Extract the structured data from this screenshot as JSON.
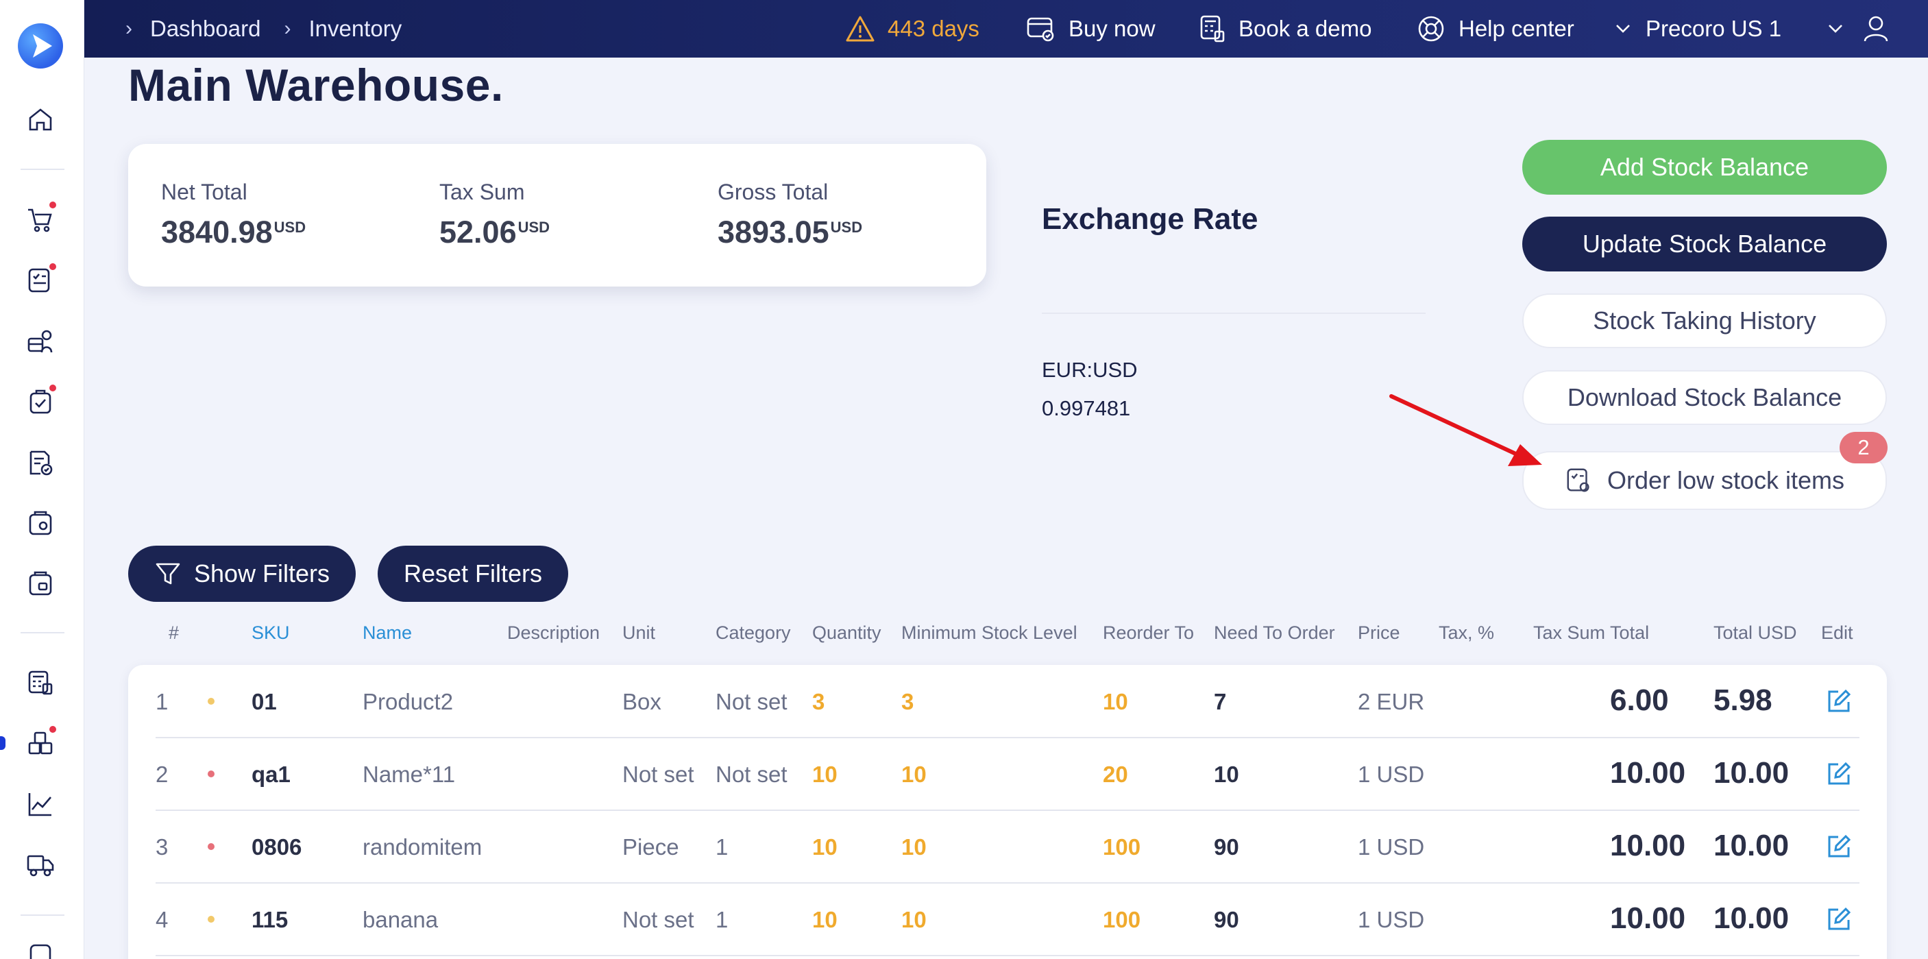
{
  "breadcrumb": [
    "Dashboard",
    "Inventory"
  ],
  "topbar": {
    "trial": "443 days",
    "buy_now": "Buy now",
    "book_demo": "Book a demo",
    "help_center": "Help center",
    "company": "Precoro US 1"
  },
  "page_title": "Main Warehouse.",
  "summary": {
    "net_total_label": "Net Total",
    "net_total_value": "3840.98",
    "tax_sum_label": "Tax Sum",
    "tax_sum_value": "52.06",
    "gross_total_label": "Gross Total",
    "gross_total_value": "3893.05",
    "currency": "USD"
  },
  "exchange": {
    "title": "Exchange Rate",
    "pair": "EUR:USD",
    "rate": "0.997481"
  },
  "actions": {
    "add_stock": "Add Stock Balance",
    "update_stock": "Update Stock Balance",
    "history": "Stock Taking History",
    "download": "Download Stock Balance",
    "order_low": "Order low stock items",
    "order_low_badge": "2"
  },
  "filters": {
    "show": "Show Filters",
    "reset": "Reset Filters"
  },
  "table": {
    "headers": [
      "#",
      "SKU",
      "Name",
      "Description",
      "Unit",
      "Category",
      "Quantity",
      "Minimum Stock Level",
      "Reorder To",
      "Need To Order",
      "Price",
      "Tax, %",
      "Tax Sum Total",
      "Total USD",
      "Edit"
    ],
    "rows": [
      {
        "num": "1",
        "status": "warning",
        "sku": "01",
        "name": "Product2",
        "description": "",
        "unit": "Box",
        "category": "Not set",
        "quantity": "3",
        "min_level": "3",
        "reorder_to": "10",
        "need": "7",
        "price": "2 EUR",
        "tax": "",
        "tax_sum_total": "6.00",
        "total": "5.98"
      },
      {
        "num": "2",
        "status": "danger",
        "sku": "qa1",
        "name": "Name*11",
        "description": "",
        "unit": "Not set",
        "category": "Not set",
        "quantity": "10",
        "min_level": "10",
        "reorder_to": "20",
        "need": "10",
        "price": "1 USD",
        "tax": "",
        "tax_sum_total": "10.00",
        "total": "10.00"
      },
      {
        "num": "3",
        "status": "danger",
        "sku": "0806",
        "name": "randomitem",
        "description": "",
        "unit": "Piece",
        "category": "1",
        "quantity": "10",
        "min_level": "10",
        "reorder_to": "100",
        "need": "90",
        "price": "1 USD",
        "tax": "",
        "tax_sum_total": "10.00",
        "total": "10.00"
      },
      {
        "num": "4",
        "status": "warning",
        "sku": "115",
        "name": "banana",
        "description": "",
        "unit": "Not set",
        "category": "1",
        "quantity": "10",
        "min_level": "10",
        "reorder_to": "100",
        "need": "90",
        "price": "1 USD",
        "tax": "",
        "tax_sum_total": "10.00",
        "total": "10.00"
      }
    ]
  },
  "colors": {
    "navy": "#1b2452",
    "green": "#67c46b",
    "orange": "#f0aa2d",
    "status_warning": "#f2c96a",
    "status_danger": "#e7707a",
    "annotation_arrow": "#e3141b"
  },
  "icons": {
    "sidebar": [
      "home-icon",
      "cart-icon",
      "requisition-icon",
      "suppliers-icon",
      "approvals-icon",
      "invoice-icon",
      "receipt-icon",
      "payments-icon",
      "budget-icon",
      "inventory-icon",
      "analytics-icon",
      "delivery-icon"
    ]
  }
}
